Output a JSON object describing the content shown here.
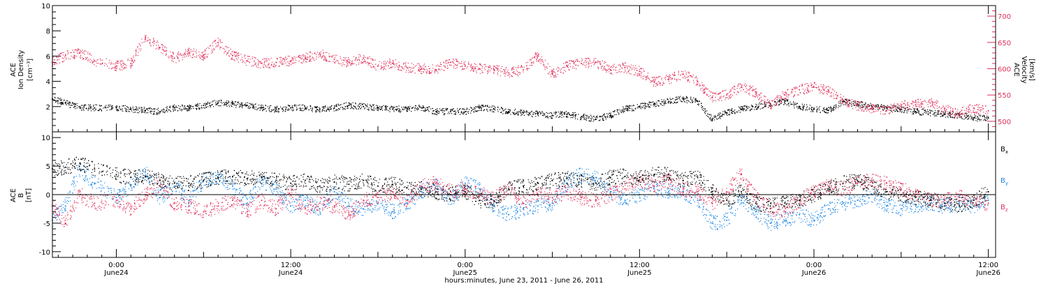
{
  "chart_data": [
    {
      "type": "scatter",
      "panel": "top",
      "ylabel_left": [
        "ACE",
        "Ion Density",
        "[cm⁻³]"
      ],
      "ylabel_right": [
        "ACE",
        "Velocity",
        "[km/s]"
      ],
      "left_axis": {
        "ylim": [
          0,
          10
        ],
        "ticks": [
          "2",
          "4",
          "6",
          "8",
          "10"
        ]
      },
      "right_axis": {
        "ylim": [
          480,
          720
        ],
        "ticks": [
          "500",
          "550",
          "600",
          "650",
          "700"
        ],
        "color": "#e0305a"
      },
      "x_hours_range": [
        -4.4,
        60.5
      ],
      "series": [
        {
          "color": "#000000",
          "axis": "left",
          "x_hours": [
            -4.4,
            -3.5,
            -2.5,
            -1.5,
            0,
            1,
            2,
            3,
            4,
            5,
            6,
            7,
            8,
            9,
            10,
            11,
            12,
            13,
            14,
            15,
            16,
            17,
            18,
            19,
            20,
            21,
            22,
            23,
            24,
            25,
            26,
            27,
            28,
            29,
            30,
            31,
            32,
            33,
            34,
            35,
            36,
            37,
            38,
            39,
            40,
            41,
            42,
            43,
            44,
            45,
            46,
            47,
            48,
            49,
            50,
            51,
            52,
            53,
            54,
            55,
            56,
            57,
            58,
            59,
            60
          ],
          "values": [
            2.6,
            2.3,
            1.9,
            1.9,
            1.9,
            1.8,
            1.7,
            1.6,
            1.9,
            1.9,
            2.1,
            2.3,
            2.2,
            2.1,
            1.9,
            1.8,
            1.9,
            1.9,
            1.8,
            1.9,
            2.1,
            2.0,
            1.9,
            1.8,
            1.8,
            1.9,
            1.6,
            1.6,
            1.6,
            1.9,
            1.8,
            1.6,
            1.5,
            1.4,
            1.3,
            1.4,
            1.2,
            1.0,
            1.3,
            1.8,
            2.0,
            2.2,
            2.4,
            2.6,
            2.4,
            1.0,
            1.5,
            1.8,
            2.0,
            2.2,
            2.4,
            2.0,
            1.8,
            1.7,
            2.4,
            2.2,
            2.0,
            1.9,
            1.8,
            1.6,
            1.5,
            1.4,
            1.3,
            1.1,
            1.1
          ]
        },
        {
          "color": "#e0305a",
          "axis": "right",
          "x_hours": [
            -4.4,
            -3.5,
            -2.5,
            -1.5,
            0,
            1,
            2,
            3,
            4,
            5,
            6,
            7,
            8,
            9,
            10,
            11,
            12,
            13,
            14,
            15,
            16,
            17,
            18,
            19,
            20,
            21,
            22,
            23,
            24,
            25,
            26,
            27,
            28,
            29,
            30,
            31,
            32,
            33,
            34,
            35,
            36,
            37,
            38,
            39,
            40,
            41,
            42,
            43,
            44,
            45,
            46,
            47,
            48,
            49,
            50,
            51,
            52,
            53,
            54,
            55,
            56,
            57,
            58,
            59,
            60
          ],
          "values": [
            612,
            625,
            630,
            615,
            605,
            610,
            660,
            640,
            620,
            630,
            625,
            650,
            625,
            615,
            610,
            612,
            615,
            620,
            628,
            618,
            612,
            620,
            605,
            610,
            602,
            600,
            598,
            612,
            605,
            600,
            598,
            592,
            598,
            625,
            590,
            605,
            610,
            612,
            598,
            602,
            595,
            575,
            580,
            590,
            575,
            545,
            550,
            565,
            555,
            530,
            550,
            560,
            565,
            558,
            540,
            530,
            525,
            520,
            530,
            532,
            535,
            525,
            515,
            525,
            520
          ]
        }
      ]
    },
    {
      "type": "scatter",
      "panel": "bottom",
      "ylabel_left": [
        "ACE",
        "B",
        "[nT]"
      ],
      "left_axis": {
        "ylim": [
          -11,
          11
        ],
        "ticks": [
          "-10",
          "-5",
          "0",
          "5",
          "10"
        ]
      },
      "x_hours_range": [
        -4.4,
        60.5
      ],
      "zero_line": true,
      "xticks": [
        {
          "time": "0:00",
          "date": "June24",
          "hours": 0
        },
        {
          "time": "12:00",
          "date": "June24",
          "hours": 12
        },
        {
          "time": "0:00",
          "date": "June25",
          "hours": 24
        },
        {
          "time": "12:00",
          "date": "June25",
          "hours": 36
        },
        {
          "time": "0:00",
          "date": "June26",
          "hours": 48
        },
        {
          "time": "12:00",
          "date": "June26",
          "hours": 60
        }
      ],
      "xlabel": "hours:minutes, June 23, 2011 - June 26, 2011",
      "series": [
        {
          "name": "Bx",
          "color": "#000000",
          "x_hours": [
            -4.4,
            -3.5,
            -2.5,
            -1.5,
            0,
            1,
            2,
            3,
            4,
            5,
            6,
            7,
            8,
            9,
            10,
            11,
            12,
            13,
            14,
            15,
            16,
            17,
            18,
            19,
            20,
            21,
            22,
            23,
            24,
            25,
            26,
            27,
            28,
            29,
            30,
            31,
            32,
            33,
            34,
            35,
            36,
            37,
            38,
            39,
            40,
            41,
            42,
            43,
            44,
            45,
            46,
            47,
            48,
            49,
            50,
            51,
            52,
            53,
            54,
            55,
            56,
            57,
            58,
            59,
            60
          ],
          "values": [
            4.5,
            4.8,
            5.5,
            4.5,
            3.5,
            3.0,
            3.2,
            2.5,
            2.0,
            2.0,
            2.5,
            3.0,
            3.2,
            2.8,
            3.0,
            2.5,
            2.0,
            2.5,
            1.5,
            2.2,
            1.8,
            2.5,
            1.5,
            1.8,
            1.2,
            1.0,
            0.5,
            0.0,
            0.5,
            -1.0,
            -1.2,
            1.0,
            1.5,
            2.0,
            2.5,
            2.8,
            2.5,
            2.0,
            3.0,
            3.2,
            3.0,
            3.5,
            3.5,
            2.5,
            3.0,
            0.5,
            -1.0,
            0.5,
            -1.5,
            -2.0,
            -1.5,
            -1.0,
            0.0,
            1.0,
            2.0,
            2.5,
            1.5,
            0.5,
            0.0,
            -0.5,
            -1.0,
            -1.5,
            -2.0,
            -1.0,
            0.5
          ]
        },
        {
          "name": "By",
          "color": "#1e88e5",
          "x_hours": [
            -4.4,
            -3.5,
            -2.5,
            -1.5,
            0,
            1,
            2,
            3,
            4,
            5,
            6,
            7,
            8,
            9,
            10,
            11,
            12,
            13,
            14,
            15,
            16,
            17,
            18,
            19,
            20,
            21,
            22,
            23,
            24,
            25,
            26,
            27,
            28,
            29,
            30,
            31,
            32,
            33,
            34,
            35,
            36,
            37,
            38,
            39,
            40,
            41,
            42,
            43,
            44,
            45,
            46,
            47,
            48,
            49,
            50,
            51,
            52,
            53,
            54,
            55,
            56,
            57,
            58,
            59,
            60
          ],
          "values": [
            -4.5,
            -2.0,
            4.5,
            2.0,
            -0.5,
            1.5,
            4.0,
            -0.5,
            1.5,
            -1.0,
            2.5,
            3.0,
            1.5,
            -1.5,
            2.5,
            1.0,
            -2.0,
            -1.0,
            -2.5,
            0.5,
            -2.0,
            -2.5,
            -1.5,
            -3.0,
            -1.5,
            0.5,
            1.5,
            -1.0,
            2.0,
            1.0,
            -2.0,
            -3.5,
            -2.5,
            -2.0,
            -1.5,
            2.0,
            3.5,
            3.0,
            0.5,
            -1.0,
            0.0,
            1.0,
            0.5,
            0.5,
            -1.0,
            -5.0,
            -4.5,
            -1.0,
            -3.0,
            -5.0,
            -4.5,
            -3.5,
            -4.5,
            -2.5,
            -1.5,
            -1.0,
            0.0,
            -2.0,
            -2.5,
            -2.0,
            -1.5,
            -2.0,
            -1.5,
            -2.0,
            -1.0
          ]
        },
        {
          "name": "Bz",
          "color": "#e0305a",
          "x_hours": [
            -4.4,
            -3.5,
            -2.5,
            -1.5,
            0,
            1,
            2,
            3,
            4,
            5,
            6,
            7,
            8,
            9,
            10,
            11,
            12,
            13,
            14,
            15,
            16,
            17,
            18,
            19,
            20,
            21,
            22,
            23,
            24,
            25,
            26,
            27,
            28,
            29,
            30,
            31,
            32,
            33,
            34,
            35,
            36,
            37,
            38,
            39,
            40,
            41,
            42,
            43,
            44,
            45,
            46,
            47,
            48,
            49,
            50,
            51,
            52,
            53,
            54,
            55,
            56,
            57,
            58,
            59,
            60
          ],
          "values": [
            -2.0,
            -5.0,
            0.0,
            -1.5,
            -1.0,
            -2.5,
            0.0,
            1.5,
            -1.5,
            -2.0,
            -3.0,
            -2.0,
            -1.0,
            -3.0,
            -1.0,
            -2.5,
            0.0,
            -2.5,
            -1.5,
            -2.0,
            -3.5,
            -1.0,
            -0.5,
            0.5,
            -1.0,
            1.5,
            2.0,
            0.5,
            1.0,
            0.0,
            -0.5,
            1.0,
            -1.5,
            0.0,
            -0.5,
            0.5,
            -0.5,
            -1.0,
            0.0,
            1.0,
            2.5,
            1.5,
            2.5,
            1.0,
            0.5,
            -1.5,
            0.5,
            3.5,
            -0.5,
            -2.5,
            -3.0,
            -1.0,
            0.5,
            1.5,
            1.0,
            2.0,
            2.5,
            2.0,
            1.0,
            0.0,
            -1.0,
            -1.0,
            -0.5,
            -1.0,
            -1.5
          ]
        }
      ]
    }
  ]
}
